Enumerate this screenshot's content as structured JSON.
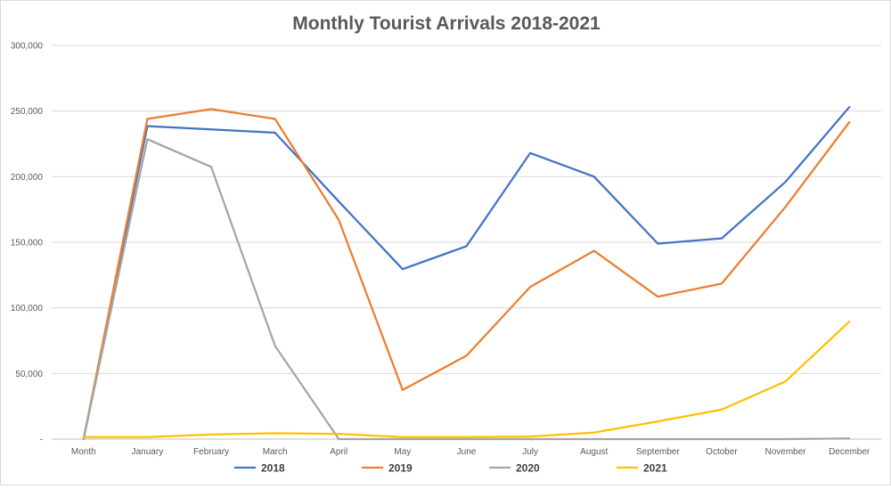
{
  "chart_data": {
    "type": "line",
    "title": "Monthly Tourist Arrivals 2018-2021",
    "xlabel": "",
    "ylabel": "",
    "categories": [
      "Month",
      "January",
      "February",
      "March",
      "April",
      "May",
      "June",
      "July",
      "August",
      "September",
      "October",
      "November",
      "December"
    ],
    "ylim": [
      0,
      300000
    ],
    "yticks": [
      0,
      50000,
      100000,
      150000,
      200000,
      250000,
      300000
    ],
    "ytick_labels": [
      "-",
      "50,000",
      "100,000",
      "150,000",
      "200,000",
      "250,000",
      "300,000"
    ],
    "grid": true,
    "legend_position": "bottom",
    "series": [
      {
        "name": "2018",
        "color": "#4472c4",
        "values": [
          0,
          238500,
          236000,
          233500,
          181000,
          129500,
          147000,
          218000,
          200000,
          149000,
          153000,
          196000,
          253000
        ]
      },
      {
        "name": "2019",
        "color": "#ed7d31",
        "values": [
          0,
          244000,
          251500,
          244000,
          167000,
          37500,
          63500,
          116000,
          143500,
          108500,
          118500,
          177000,
          241500
        ]
      },
      {
        "name": "2020",
        "color": "#a5a5a5",
        "values": [
          0,
          228500,
          207500,
          71000,
          0,
          0,
          0,
          0,
          0,
          0,
          0,
          0,
          500
        ]
      },
      {
        "name": "2021",
        "color": "#ffc000",
        "values": [
          1500,
          1500,
          3500,
          4500,
          4000,
          1500,
          1500,
          2000,
          5000,
          13500,
          22500,
          44000,
          89500
        ]
      }
    ]
  }
}
